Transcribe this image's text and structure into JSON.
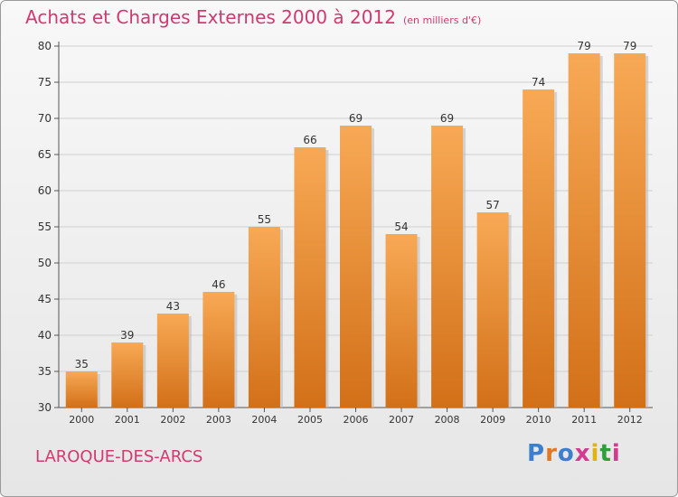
{
  "header": {
    "title": "Achats et Charges Externes 2000 à 2012",
    "unit": "(en milliers d'€)"
  },
  "footer": {
    "commune": "LAROQUE-DES-ARCS",
    "brand_letters": [
      "P",
      "r",
      "o",
      "x",
      "i",
      "t",
      "i"
    ]
  },
  "colors": {
    "title": "#d03a70",
    "bar_top": "#f8a955",
    "bar_bottom": "#d27018",
    "brand": [
      "#3d7fcf",
      "#e27826",
      "#3d7fcf",
      "#d43a8e",
      "#e0b21a",
      "#2f9f3a",
      "#d43a8e"
    ]
  },
  "chart_data": {
    "type": "bar",
    "categories": [
      "2000",
      "2001",
      "2002",
      "2003",
      "2004",
      "2005",
      "2006",
      "2007",
      "2008",
      "2009",
      "2010",
      "2011",
      "2012"
    ],
    "values": [
      35,
      39,
      43,
      46,
      55,
      66,
      69,
      54,
      69,
      57,
      74,
      79,
      79
    ],
    "ylim": [
      30,
      80
    ],
    "yticks": [
      30,
      35,
      40,
      45,
      50,
      55,
      60,
      65,
      70,
      75,
      80
    ],
    "grid": "horizontal",
    "legend": "none",
    "data_labels": true
  }
}
